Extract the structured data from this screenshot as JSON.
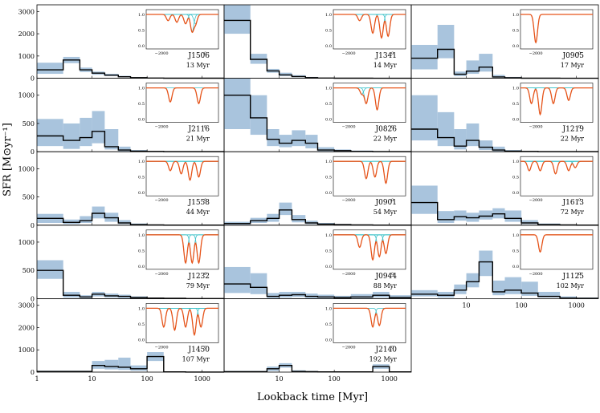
{
  "figure": {
    "ylabel": "SFR [M⊙yr⁻¹]",
    "xlabel": "Lookback time [Myr]",
    "colors": {
      "band": "#a9c4dd",
      "line": "#000000",
      "inset_total": "#e8541a",
      "inset_components": "#3cc1c8"
    }
  },
  "chart_data": [
    {
      "type": "line",
      "name": "J1506",
      "age": "13 Myr",
      "row": 0,
      "col": 0,
      "ylim": [
        0,
        3300
      ],
      "yticks": [
        0,
        1000,
        2000,
        3000
      ],
      "xscale": "log",
      "xlim": [
        1,
        2500
      ],
      "edges": [
        1,
        3,
        6,
        10,
        17,
        30,
        50,
        100,
        200,
        500,
        1000,
        2500
      ],
      "sfr": [
        380,
        820,
        380,
        230,
        140,
        70,
        30,
        10,
        5,
        3,
        2
      ],
      "lo": [
        200,
        680,
        280,
        160,
        100,
        50,
        20,
        5,
        2,
        1,
        1
      ],
      "hi": [
        700,
        960,
        480,
        300,
        200,
        110,
        50,
        20,
        10,
        6,
        4
      ],
      "inset": {
        "xticks": [
          -2000,
          0
        ],
        "yticks": [
          0.0,
          0.5,
          1.0
        ],
        "dips": [
          [
            -1700,
            0.2
          ],
          [
            -1300,
            0.25
          ],
          [
            -900,
            0.3
          ],
          [
            -600,
            0.55
          ],
          [
            -450,
            0.3
          ]
        ]
      }
    },
    {
      "type": "line",
      "name": "J1341",
      "age": "14 Myr",
      "row": 0,
      "col": 1,
      "ylim": [
        0,
        3300
      ],
      "xscale": "log",
      "xlim": [
        1,
        2500
      ],
      "edges": [
        1,
        3,
        6,
        10,
        17,
        30,
        50,
        100,
        200,
        500,
        1000,
        2500
      ],
      "sfr": [
        2600,
        850,
        330,
        150,
        80,
        30,
        10,
        5,
        2,
        1,
        1
      ],
      "lo": [
        2000,
        650,
        250,
        100,
        50,
        15,
        5,
        2,
        1,
        1,
        1
      ],
      "hi": [
        3300,
        1100,
        420,
        250,
        140,
        60,
        20,
        10,
        5,
        3,
        2
      ],
      "inset": {
        "xticks": [
          -2000,
          0
        ],
        "dips": [
          [
            -1500,
            0.2
          ],
          [
            -900,
            0.6
          ],
          [
            -500,
            0.75
          ],
          [
            -200,
            0.7
          ]
        ]
      }
    },
    {
      "type": "line",
      "name": "J0905",
      "age": "17 Myr",
      "row": 0,
      "col": 2,
      "ylim": [
        0,
        3300
      ],
      "xscale": "log",
      "xlim": [
        1,
        2500
      ],
      "edges": [
        1,
        3,
        6,
        10,
        17,
        30,
        50,
        100,
        200,
        500,
        1000,
        2500
      ],
      "sfr": [
        900,
        1300,
        180,
        320,
        500,
        60,
        20,
        5,
        2,
        1,
        1
      ],
      "lo": [
        400,
        900,
        100,
        200,
        300,
        30,
        10,
        2,
        1,
        1,
        1
      ],
      "hi": [
        1500,
        2400,
        300,
        800,
        1100,
        150,
        60,
        20,
        10,
        5,
        3
      ],
      "inset": {
        "xticks": [
          -2000,
          0
        ],
        "dips": [
          [
            -2000,
            0.9
          ]
        ]
      }
    },
    {
      "type": "line",
      "name": "J2116",
      "age": "21 Myr",
      "row": 1,
      "col": 0,
      "ylim": [
        0,
        1300
      ],
      "yticks": [
        0,
        500,
        1000
      ],
      "xscale": "log",
      "xlim": [
        1,
        2500
      ],
      "edges": [
        1,
        3,
        6,
        10,
        17,
        30,
        50,
        100,
        200,
        500,
        1000,
        2500
      ],
      "sfr": [
        280,
        200,
        250,
        360,
        90,
        30,
        10,
        5,
        2,
        1,
        1
      ],
      "lo": [
        100,
        50,
        100,
        150,
        40,
        10,
        5,
        2,
        1,
        1,
        1
      ],
      "hi": [
        580,
        500,
        600,
        720,
        400,
        90,
        30,
        10,
        5,
        3,
        2
      ],
      "inset": {
        "xticks": [
          -2000,
          0
        ],
        "dips": [
          [
            -1600,
            0.45
          ],
          [
            -300,
            0.5
          ]
        ]
      }
    },
    {
      "type": "line",
      "name": "J0826",
      "age": "22 Myr",
      "row": 1,
      "col": 1,
      "ylim": [
        0,
        1300
      ],
      "xscale": "log",
      "xlim": [
        1,
        2500
      ],
      "edges": [
        1,
        3,
        6,
        10,
        17,
        30,
        50,
        100,
        200,
        500,
        1000,
        2500
      ],
      "sfr": [
        1000,
        600,
        220,
        150,
        200,
        150,
        30,
        20,
        5,
        2,
        1
      ],
      "lo": [
        400,
        300,
        100,
        80,
        100,
        60,
        10,
        5,
        2,
        1,
        1
      ],
      "hi": [
        1300,
        1000,
        400,
        300,
        380,
        300,
        80,
        40,
        20,
        10,
        5
      ],
      "inset": {
        "xticks": [
          -2000,
          0
        ],
        "dips": [
          [
            -1400,
            0.2
          ],
          [
            -1200,
            0.5
          ],
          [
            -700,
            0.7
          ]
        ]
      }
    },
    {
      "type": "line",
      "name": "J1219",
      "age": "22 Myr",
      "row": 1,
      "col": 2,
      "ylim": [
        0,
        1300
      ],
      "xscale": "log",
      "xlim": [
        1,
        2500
      ],
      "edges": [
        1,
        3,
        6,
        10,
        17,
        30,
        50,
        100,
        200,
        500,
        1000,
        2500
      ],
      "sfr": [
        400,
        250,
        100,
        200,
        80,
        30,
        10,
        5,
        2,
        1,
        1
      ],
      "lo": [
        200,
        100,
        40,
        100,
        30,
        10,
        5,
        2,
        1,
        1,
        1
      ],
      "hi": [
        1000,
        700,
        400,
        500,
        200,
        90,
        30,
        10,
        5,
        3,
        2
      ],
      "inset": {
        "xticks": [
          -2000,
          0
        ],
        "dips": [
          [
            -2200,
            0.5
          ],
          [
            -1800,
            0.85
          ],
          [
            -1200,
            0.5
          ],
          [
            -500,
            0.4
          ]
        ]
      }
    },
    {
      "type": "line",
      "name": "J1558",
      "age": "44 Myr",
      "row": 2,
      "col": 0,
      "ylim": [
        0,
        1300
      ],
      "yticks": [
        0,
        500,
        1000
      ],
      "xscale": "log",
      "xlim": [
        1,
        2500
      ],
      "edges": [
        1,
        3,
        6,
        10,
        17,
        30,
        50,
        100,
        200,
        500,
        1000,
        2500
      ],
      "sfr": [
        120,
        50,
        80,
        210,
        130,
        40,
        10,
        5,
        2,
        1,
        1
      ],
      "lo": [
        40,
        20,
        40,
        120,
        60,
        20,
        5,
        2,
        1,
        1,
        1
      ],
      "hi": [
        200,
        100,
        160,
        330,
        220,
        90,
        30,
        10,
        5,
        3,
        2
      ],
      "inset": {
        "xticks": [
          -2000,
          0
        ],
        "dips": [
          [
            -1600,
            0.3
          ],
          [
            -1100,
            0.4
          ],
          [
            -700,
            0.6
          ],
          [
            -300,
            0.5
          ]
        ]
      }
    },
    {
      "type": "line",
      "name": "J0901",
      "age": "54 Myr",
      "row": 2,
      "col": 1,
      "ylim": [
        0,
        1300
      ],
      "xscale": "log",
      "xlim": [
        1,
        2500
      ],
      "edges": [
        1,
        3,
        6,
        10,
        17,
        30,
        50,
        100,
        200,
        500,
        1000,
        2500
      ],
      "sfr": [
        30,
        80,
        120,
        270,
        100,
        40,
        20,
        10,
        5,
        2,
        1
      ],
      "lo": [
        10,
        40,
        60,
        180,
        50,
        20,
        10,
        5,
        2,
        1,
        1
      ],
      "hi": [
        60,
        130,
        200,
        400,
        180,
        80,
        40,
        20,
        10,
        5,
        3
      ],
      "inset": {
        "xticks": [
          -2000,
          0
        ],
        "dips": [
          [
            -1200,
            0.55
          ],
          [
            -800,
            0.5
          ],
          [
            -300,
            0.7
          ]
        ]
      }
    },
    {
      "type": "line",
      "name": "J1613",
      "age": "72 Myr",
      "row": 2,
      "col": 2,
      "ylim": [
        0,
        1300
      ],
      "xscale": "log",
      "xlim": [
        1,
        2500
      ],
      "edges": [
        1,
        3,
        6,
        10,
        17,
        30,
        50,
        100,
        200,
        500,
        1000,
        2500
      ],
      "sfr": [
        400,
        100,
        150,
        130,
        160,
        200,
        120,
        40,
        10,
        5,
        2
      ],
      "lo": [
        200,
        40,
        80,
        60,
        100,
        120,
        60,
        20,
        5,
        2,
        1
      ],
      "hi": [
        700,
        250,
        260,
        220,
        260,
        300,
        260,
        90,
        30,
        10,
        5
      ],
      "inset": {
        "xticks": [
          -2000,
          0
        ],
        "dips": [
          [
            -2300,
            0.3
          ],
          [
            -1800,
            0.3
          ],
          [
            -1100,
            0.4
          ],
          [
            -500,
            0.3
          ],
          [
            -200,
            0.2
          ]
        ]
      }
    },
    {
      "type": "line",
      "name": "J1232",
      "age": "79 Myr",
      "row": 3,
      "col": 0,
      "ylim": [
        0,
        1300
      ],
      "yticks": [
        0,
        500,
        1000
      ],
      "xscale": "log",
      "xlim": [
        1,
        2500
      ],
      "edges": [
        1,
        3,
        6,
        10,
        17,
        30,
        50,
        100,
        200,
        500,
        1000,
        2500
      ],
      "sfr": [
        500,
        60,
        30,
        80,
        50,
        40,
        20,
        10,
        5,
        2,
        1
      ],
      "lo": [
        350,
        20,
        10,
        40,
        20,
        10,
        5,
        2,
        1,
        1,
        1
      ],
      "hi": [
        680,
        120,
        60,
        120,
        90,
        70,
        40,
        20,
        10,
        5,
        3
      ],
      "inset": {
        "xticks": [
          -2000,
          0
        ],
        "dips": [
          [
            -900,
            0.9
          ],
          [
            -600,
            0.9
          ],
          [
            -300,
            0.9
          ]
        ]
      }
    },
    {
      "type": "line",
      "name": "J0944",
      "age": "88 Myr",
      "row": 3,
      "col": 1,
      "ylim": [
        0,
        1300
      ],
      "xscale": "log",
      "xlim": [
        1,
        2500
      ],
      "edges": [
        1,
        3,
        6,
        10,
        17,
        30,
        50,
        100,
        200,
        500,
        1000,
        2500
      ],
      "sfr": [
        260,
        200,
        40,
        60,
        70,
        40,
        30,
        20,
        30,
        60,
        20
      ],
      "lo": [
        100,
        80,
        10,
        20,
        30,
        10,
        10,
        5,
        10,
        20,
        5
      ],
      "hi": [
        560,
        450,
        100,
        120,
        120,
        90,
        70,
        50,
        80,
        120,
        60
      ],
      "inset": {
        "xticks": [
          -2000,
          0
        ],
        "dips": [
          [
            -1500,
            0.4
          ],
          [
            -900,
            0.8
          ],
          [
            -600,
            0.7
          ],
          [
            -300,
            0.6
          ]
        ]
      }
    },
    {
      "type": "line",
      "name": "J1125",
      "age": "102 Myr",
      "row": 3,
      "col": 2,
      "ylim": [
        0,
        1300
      ],
      "xscale": "log",
      "xlim": [
        1,
        2500
      ],
      "edges": [
        1,
        3,
        6,
        10,
        17,
        30,
        50,
        100,
        200,
        500,
        1000,
        2500
      ],
      "sfr": [
        80,
        60,
        150,
        300,
        650,
        120,
        150,
        100,
        40,
        10,
        5
      ],
      "lo": [
        40,
        20,
        80,
        200,
        400,
        60,
        80,
        50,
        20,
        5,
        2
      ],
      "hi": [
        150,
        120,
        250,
        450,
        850,
        320,
        380,
        300,
        120,
        40,
        20
      ],
      "inset": {
        "xticks": [
          -2000,
          0
        ],
        "dips": [
          [
            -1800,
            0.55
          ]
        ]
      }
    },
    {
      "type": "line",
      "name": "J1450",
      "age": "107 Myr",
      "row": 4,
      "col": 0,
      "ylim": [
        0,
        3300
      ],
      "yticks": [
        0,
        1000,
        2000,
        3000
      ],
      "xscale": "log",
      "xlim": [
        1,
        2500
      ],
      "edges": [
        1,
        3,
        6,
        10,
        17,
        30,
        50,
        100,
        200,
        500,
        1000,
        2500
      ],
      "sfr": [
        30,
        30,
        30,
        300,
        250,
        220,
        150,
        700,
        10,
        5,
        2
      ],
      "lo": [
        10,
        10,
        10,
        150,
        120,
        100,
        60,
        500,
        5,
        2,
        1
      ],
      "hi": [
        60,
        60,
        60,
        500,
        550,
        650,
        300,
        900,
        30,
        10,
        5
      ],
      "inset": {
        "xticks": [
          -2000,
          0
        ],
        "dips": [
          [
            -1900,
            0.6
          ],
          [
            -1400,
            0.7
          ],
          [
            -900,
            0.6
          ],
          [
            -500,
            0.85
          ],
          [
            -200,
            0.6
          ]
        ]
      }
    },
    {
      "type": "line",
      "name": "J2140",
      "age": "192 Myr",
      "row": 4,
      "col": 1,
      "ylim": [
        0,
        3300
      ],
      "xscale": "log",
      "xlim": [
        1,
        2500
      ],
      "edges": [
        1,
        3,
        6,
        10,
        17,
        30,
        50,
        100,
        200,
        500,
        1000,
        2500
      ],
      "sfr": [
        20,
        20,
        150,
        300,
        30,
        20,
        10,
        10,
        10,
        250,
        10
      ],
      "lo": [
        5,
        5,
        50,
        200,
        10,
        5,
        5,
        5,
        5,
        150,
        5
      ],
      "hi": [
        50,
        50,
        250,
        400,
        80,
        50,
        30,
        30,
        30,
        350,
        30
      ],
      "inset": {
        "xticks": [
          -2000,
          0
        ],
        "dips": [
          [
            -900,
            0.6
          ],
          [
            -600,
            0.55
          ]
        ]
      }
    }
  ],
  "axes_labels": {
    "xticks": [
      "1",
      "10",
      "100",
      "1000"
    ],
    "yticks_top": [
      "0",
      "1000",
      "2000",
      "3000"
    ],
    "yticks_mid": [
      "0",
      "500",
      "1000"
    ],
    "inset_xticks": [
      "−2000",
      "0"
    ],
    "inset_yticks": [
      "0.0",
      "0.5",
      "1.0"
    ]
  }
}
